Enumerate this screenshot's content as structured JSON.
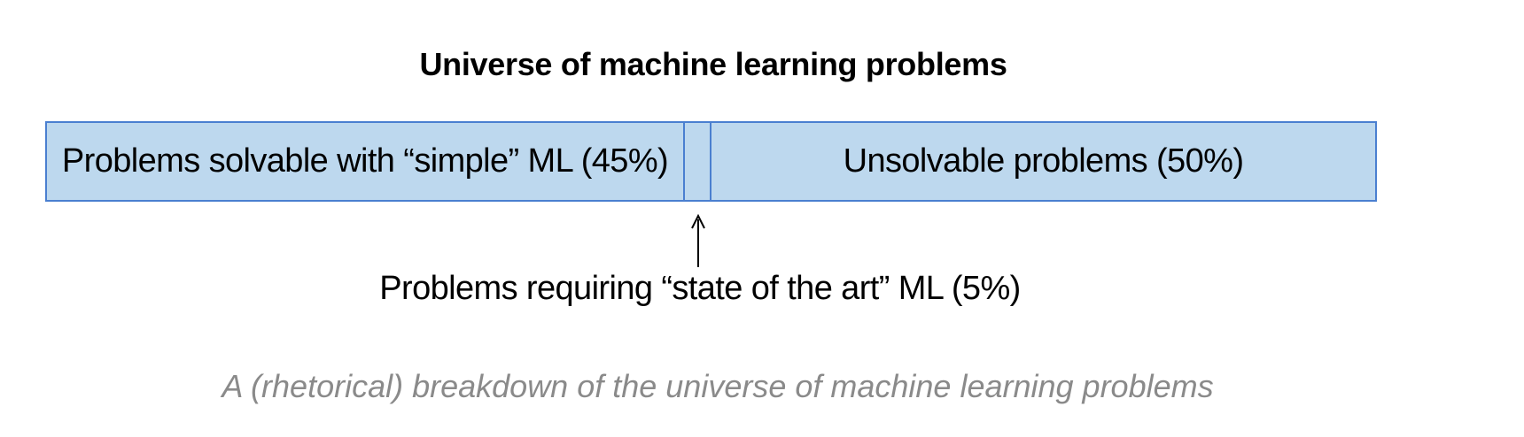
{
  "title": "Universe of machine learning problems",
  "colors": {
    "segment_fill": "#bdd8ee",
    "segment_border": "#4a7fd0",
    "caption_text": "#8a8a8a"
  },
  "segments": [
    {
      "label": "Problems solvable with “simple” ML (45%)",
      "share": 45
    },
    {
      "label": "",
      "share": 5
    },
    {
      "label": "Unsolvable problems (50%)",
      "share": 50
    }
  ],
  "callout": {
    "label": "Problems requiring “state of the art” ML (5%)",
    "icon": "arrow-up-icon"
  },
  "caption": "A (rhetorical) breakdown of the universe of machine learning problems"
}
